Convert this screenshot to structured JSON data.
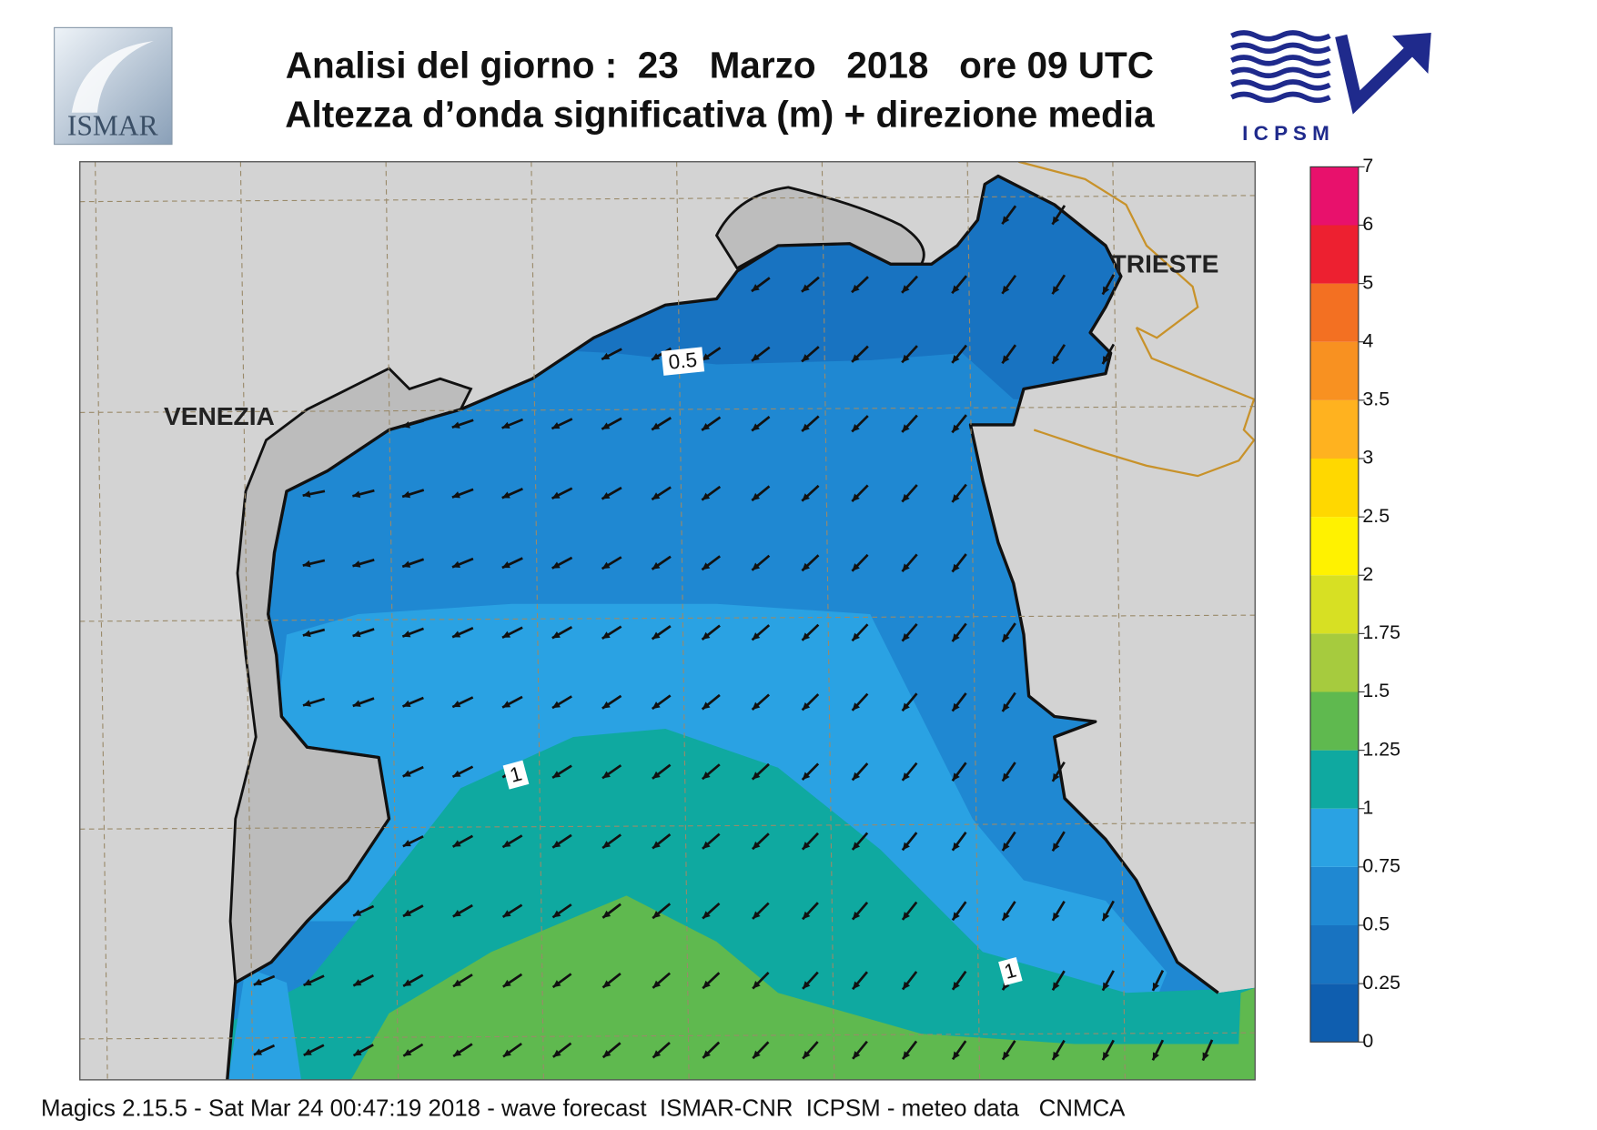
{
  "header": {
    "title_line1": "Analisi del giorno :  23   Marzo   2018   ore 09 UTC",
    "title_line2": "Altezza d’onda significativa (m) + direzione media"
  },
  "logos": {
    "left": "ISMAR",
    "right": "I C P S M"
  },
  "places": [
    "VENEZIA",
    "TRIESTE"
  ],
  "contour_labels": [
    "0.5",
    "1",
    "1"
  ],
  "colorbar": {
    "ticks": [
      0,
      0.25,
      0.5,
      0.75,
      1,
      1.25,
      1.5,
      1.75,
      2,
      2.5,
      3,
      3.5,
      4,
      5,
      6,
      7
    ],
    "colors": [
      "#0f5eaf",
      "#1873c1",
      "#1f88d2",
      "#2aa2e3",
      "#0fa9a0",
      "#5fb94f",
      "#a6cb3e",
      "#d7e023",
      "#fff200",
      "#ffd800",
      "#ffb21f",
      "#f89121",
      "#f37022",
      "#ed2030",
      "#e8116c"
    ]
  },
  "footer": "Magics 2.15.5 - Sat Mar 24 00:47:19 2018 - wave forecast  ISMAR-CNR  ICPSM - meteo data   CNMCA"
}
